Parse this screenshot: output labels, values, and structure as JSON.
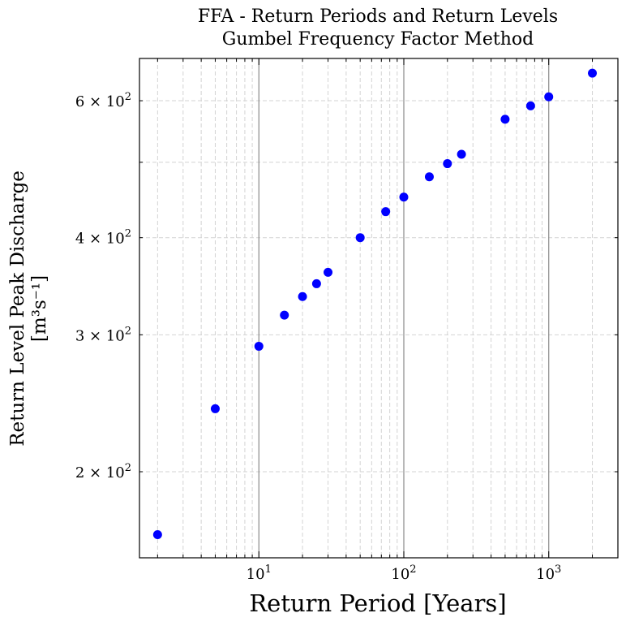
{
  "chart_data": {
    "type": "scatter",
    "title": [
      "FFA - Return Periods and Return Levels",
      "Gumbel Frequency Factor Method"
    ],
    "xlabel": "Return Period [Years]",
    "ylabel": [
      "Return Level Peak Discharge",
      "[m³s⁻¹]"
    ],
    "xscale": "log",
    "yscale": "log",
    "xlim": [
      1.5,
      3000
    ],
    "ylim": [
      155,
      680
    ],
    "grid": true,
    "marker_color": "#0000ff",
    "x_ticks": [
      {
        "value": 10,
        "mantissa": "10",
        "exponent": "1"
      },
      {
        "value": 100,
        "mantissa": "10",
        "exponent": "2"
      },
      {
        "value": 1000,
        "mantissa": "10",
        "exponent": "3"
      }
    ],
    "y_ticks": [
      {
        "value": 200,
        "mantissa": "2 × 10",
        "exponent": "2"
      },
      {
        "value": 300,
        "mantissa": "3 × 10",
        "exponent": "2"
      },
      {
        "value": 400,
        "mantissa": "4 × 10",
        "exponent": "2"
      },
      {
        "value": 600,
        "mantissa": "6 × 10",
        "exponent": "2"
      }
    ],
    "series": [
      {
        "x": [
          2,
          5,
          10,
          15,
          20,
          25,
          30,
          50,
          75,
          100,
          150,
          200,
          250,
          500,
          750,
          1000,
          2000
        ],
        "y": [
          166,
          241,
          290,
          318,
          336,
          349,
          361,
          400,
          432,
          451,
          479,
          498,
          512,
          568,
          591,
          607,
          651
        ]
      }
    ]
  }
}
